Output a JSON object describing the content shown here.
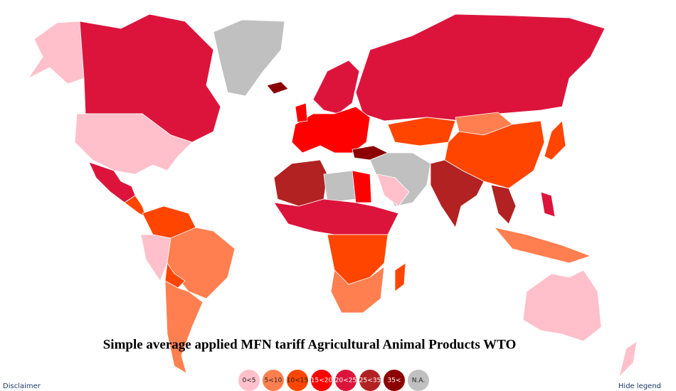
{
  "title": "Simple average applied MFN tariff Agricultural Animal Products WTO",
  "legend": [
    {
      "label": "0<5",
      "color": "#ffc0cb"
    },
    {
      "label": "5<10",
      "color": "#ff7f50"
    },
    {
      "label": "10<15",
      "color": "#ff4500"
    },
    {
      "label": "15<20",
      "color": "#ff0000"
    },
    {
      "label": "20<25",
      "color": "#dc143c"
    },
    {
      "label": "25<35",
      "color": "#b22222"
    },
    {
      "label": "35<",
      "color": "#8b0000"
    },
    {
      "label": "N.A.",
      "color": "#c0c0c0"
    }
  ],
  "footer": {
    "disclaimer": "Disclaimer",
    "hide_legend": "Hide legend"
  }
}
